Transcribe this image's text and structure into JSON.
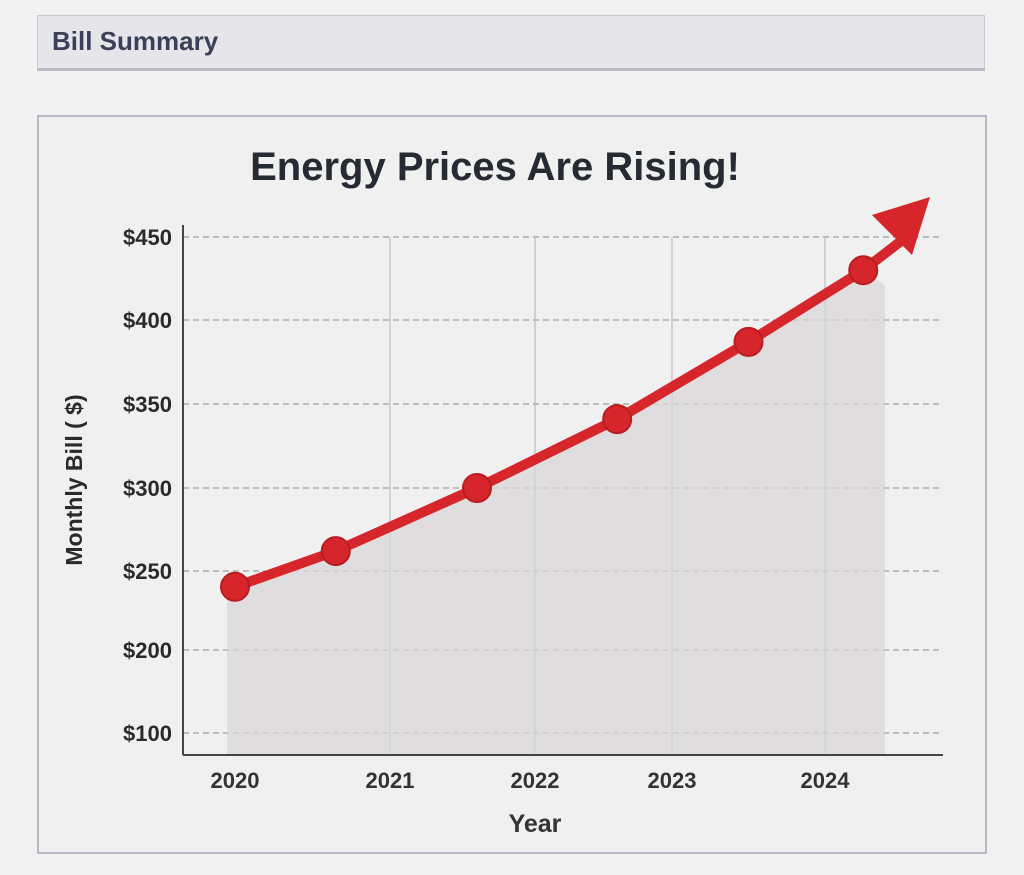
{
  "header": {
    "title": "Bill Summary"
  },
  "chart_data": {
    "type": "line",
    "title": "Energy Prices Are Rising!",
    "xlabel": "Year",
    "ylabel": "Monthly Bill ( $)",
    "x_ticks": [
      "2020",
      "2021",
      "2022",
      "2023",
      "2024"
    ],
    "y_ticks": [
      "$100",
      "$200",
      "$250",
      "$300",
      "$350",
      "$400",
      "$450"
    ],
    "y_tick_values": [
      100,
      200,
      250,
      300,
      350,
      400,
      450
    ],
    "series": [
      {
        "name": "Monthly Bill",
        "x": [
          2020,
          2020.65,
          2021.6,
          2022.6,
          2023.5,
          2024.25
        ],
        "values": [
          240,
          262,
          300,
          341,
          387,
          430
        ],
        "color": "#d7262b"
      }
    ],
    "grid": true,
    "annotation": "upward arrow"
  }
}
